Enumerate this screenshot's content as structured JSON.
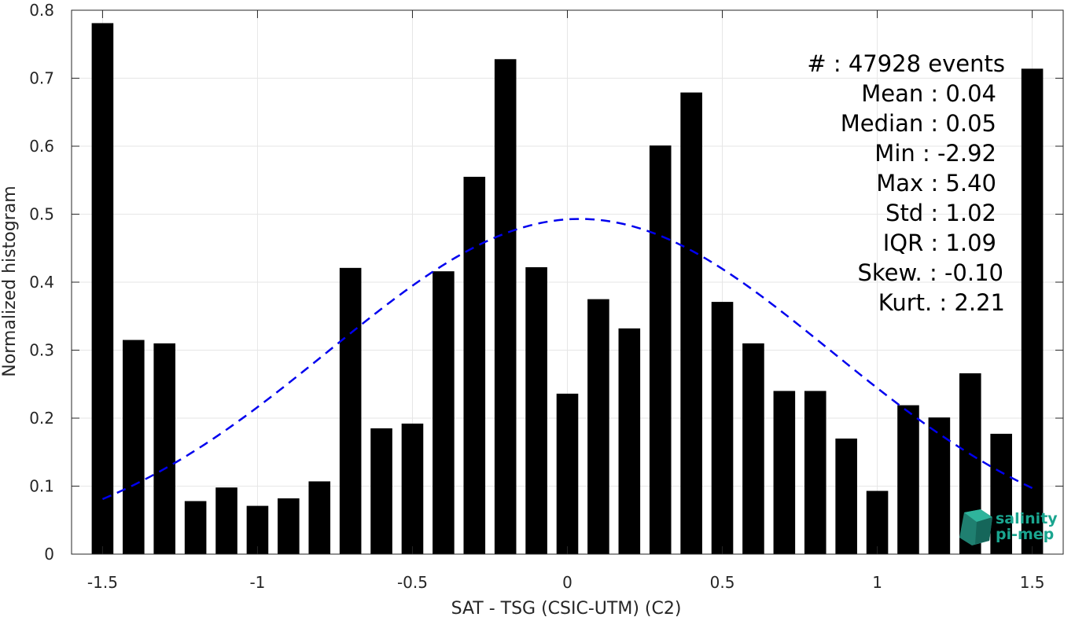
{
  "chart_data": {
    "type": "bar",
    "xlabel": "SAT - TSG (CSIC-UTM) (C2)",
    "ylabel": "Normalized histogram",
    "xlim": [
      -1.6,
      1.6
    ],
    "ylim": [
      0,
      0.8
    ],
    "xticks": [
      -1.5,
      -1,
      -0.5,
      0,
      0.5,
      1,
      1.5
    ],
    "xtick_labels": [
      "-1.5",
      "-1",
      "-0.5",
      "0",
      "0.5",
      "1",
      "1.5"
    ],
    "yticks": [
      0,
      0.1,
      0.2,
      0.3,
      0.4,
      0.5,
      0.6,
      0.7,
      0.8
    ],
    "ytick_labels": [
      "0",
      "0.1",
      "0.2",
      "0.3",
      "0.4",
      "0.5",
      "0.6",
      "0.7",
      "0.8"
    ],
    "grid": true,
    "bars": {
      "x": [
        -1.5,
        -1.4,
        -1.3,
        -1.2,
        -1.1,
        -1.0,
        -0.9,
        -0.8,
        -0.7,
        -0.6,
        -0.5,
        -0.4,
        -0.3,
        -0.2,
        -0.1,
        0.0,
        0.1,
        0.2,
        0.3,
        0.4,
        0.5,
        0.6,
        0.7,
        0.8,
        0.9,
        1.0,
        1.1,
        1.2,
        1.3,
        1.4,
        1.5
      ],
      "values": [
        0.781,
        0.315,
        0.31,
        0.078,
        0.098,
        0.071,
        0.082,
        0.107,
        0.421,
        0.185,
        0.192,
        0.416,
        0.555,
        0.728,
        0.422,
        0.236,
        0.375,
        0.332,
        0.601,
        0.679,
        0.371,
        0.31,
        0.24,
        0.24,
        0.17,
        0.093,
        0.219,
        0.201,
        0.266,
        0.177,
        0.714
      ],
      "color": "#000000",
      "width": 0.07
    },
    "fit": {
      "type": "gaussian",
      "mean": 0.04,
      "std": 0.81,
      "x_range": [
        -1.5,
        1.5
      ],
      "color": "#0000ee",
      "style": "dashed"
    },
    "stats": [
      "#  : 47928 events",
      "Mean : 0.04",
      "Median : 0.05",
      "Min : -2.92",
      "Max : 5.40",
      "Std : 1.02",
      "IQR : 1.09",
      "Skew. : -0.10",
      "Kurt. : 2.21"
    ]
  },
  "logo": {
    "line1": "salinity",
    "line2": "pi-mep",
    "color": "#1aa58f"
  }
}
